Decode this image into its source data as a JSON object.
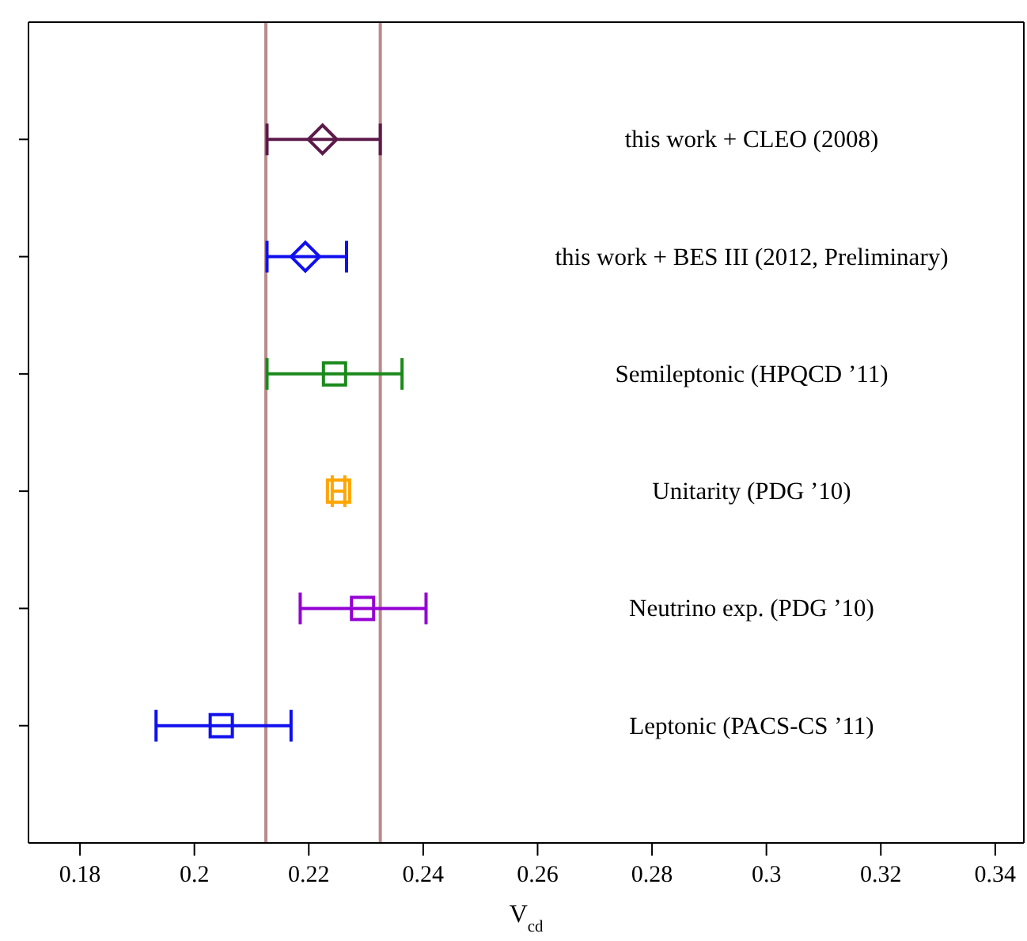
{
  "chart_data": {
    "type": "scatter",
    "orientation": "horizontal",
    "xlabel": "V$_{cd}$",
    "categories": [
      "this work + CLEO (2008)",
      "this work + BES III (2012, Preliminary)",
      "Semileptonic (HPQCD ’11)",
      "Unitarity (PDG ’10)",
      "Neutrino exp. (PDG ’10)",
      "Leptonic (PACS-CS ’11)"
    ],
    "series": [
      {
        "marker": "diamond",
        "colors": [
          "#5c1a4a",
          "#1010ee",
          null,
          null,
          null,
          null
        ],
        "values": [
          0.2224,
          0.2194,
          null,
          null,
          null,
          null
        ],
        "errors": [
          [
            0.2127,
            0.2325
          ],
          [
            0.2127,
            0.2266
          ],
          null,
          null,
          null,
          null
        ]
      },
      {
        "marker": "square",
        "colors": [
          null,
          null,
          "#1a8a1a",
          "#ffa500",
          "#9400d3",
          "#1010ee"
        ],
        "values": [
          null,
          null,
          0.2245,
          0.2252,
          0.2294,
          0.2047
        ],
        "errors": [
          null,
          null,
          [
            0.2127,
            0.2363
          ],
          [
            0.2241,
            0.2263
          ],
          [
            0.2185,
            0.2405
          ],
          [
            0.1933,
            0.2169
          ]
        ]
      }
    ],
    "xlim": [
      0.171,
      0.345
    ],
    "xticks": [
      0.18,
      0.2,
      0.22,
      0.24,
      0.26,
      0.28,
      0.3,
      0.32,
      0.34
    ],
    "ref_lines": [
      {
        "axis": "x",
        "value": 0.2125,
        "color": "#b88a8a"
      },
      {
        "axis": "x",
        "value": 0.2325,
        "color": "#b88a8a"
      }
    ],
    "grid": false,
    "legend": false
  }
}
